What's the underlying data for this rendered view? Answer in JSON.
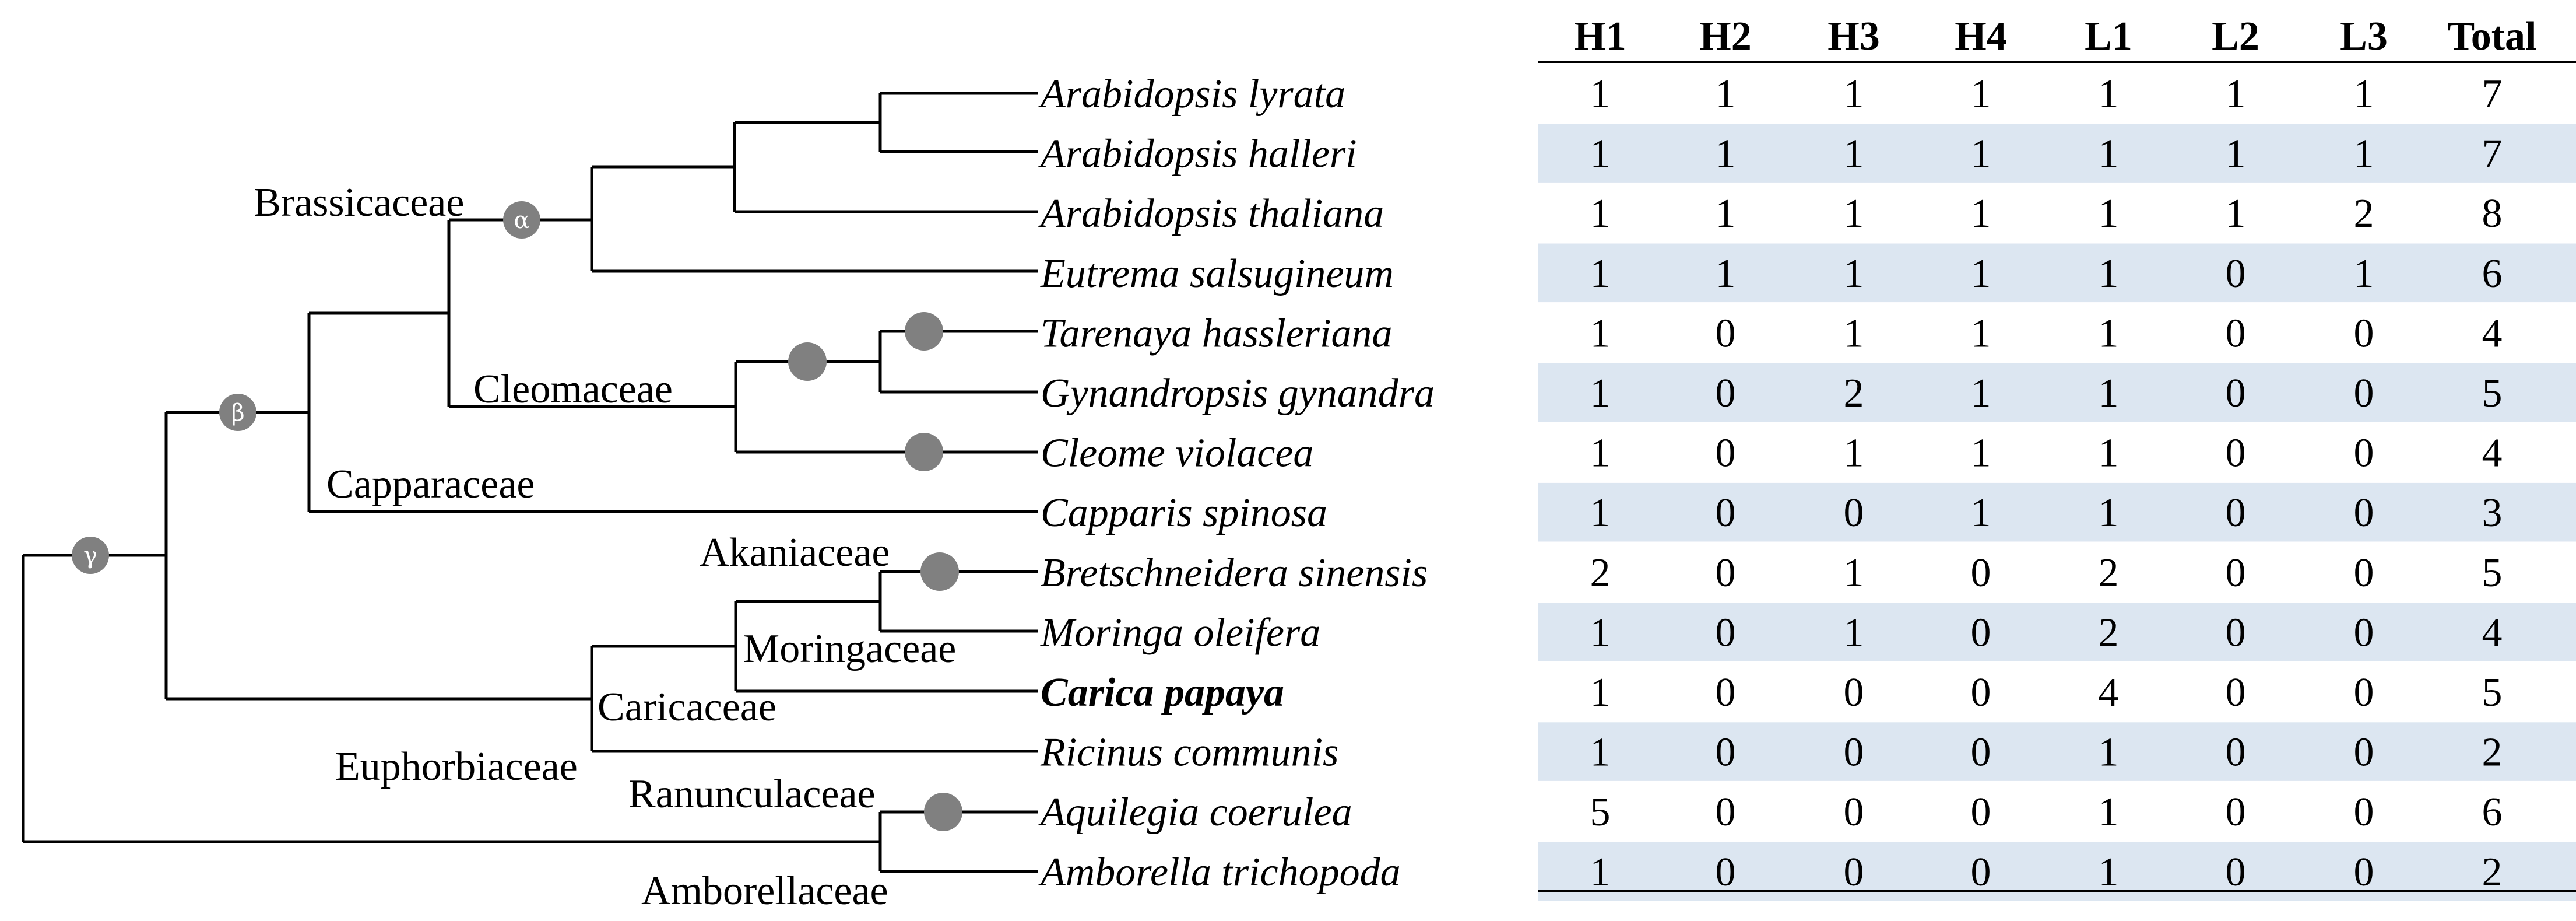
{
  "table": {
    "columns": [
      "H1",
      "H2",
      "H3",
      "H4",
      "L1",
      "L2",
      "L3",
      "Total"
    ],
    "rows": [
      {
        "species": "Arabidopsis lyrata",
        "values": [
          "1",
          "1",
          "1",
          "1",
          "1",
          "1",
          "1",
          "7"
        ],
        "bold": false
      },
      {
        "species": "Arabidopsis halleri",
        "values": [
          "1",
          "1",
          "1",
          "1",
          "1",
          "1",
          "1",
          "7"
        ],
        "bold": false
      },
      {
        "species": "Arabidopsis thaliana",
        "values": [
          "1",
          "1",
          "1",
          "1",
          "1",
          "1",
          "2",
          "8"
        ],
        "bold": false
      },
      {
        "species": "Eutrema salsugineum",
        "values": [
          "1",
          "1",
          "1",
          "1",
          "1",
          "0",
          "1",
          "6"
        ],
        "bold": false
      },
      {
        "species": "Tarenaya hassleriana",
        "values": [
          "1",
          "0",
          "1",
          "1",
          "1",
          "0",
          "0",
          "4"
        ],
        "bold": false
      },
      {
        "species": "Gynandropsis gynandra",
        "values": [
          "1",
          "0",
          "2",
          "1",
          "1",
          "0",
          "0",
          "5"
        ],
        "bold": false
      },
      {
        "species": "Cleome violacea",
        "values": [
          "1",
          "0",
          "1",
          "1",
          "1",
          "0",
          "0",
          "4"
        ],
        "bold": false
      },
      {
        "species": "Capparis spinosa",
        "values": [
          "1",
          "0",
          "0",
          "1",
          "1",
          "0",
          "0",
          "3"
        ],
        "bold": false
      },
      {
        "species": "Bretschneidera sinensis",
        "values": [
          "2",
          "0",
          "1",
          "0",
          "2",
          "0",
          "0",
          "5"
        ],
        "bold": false
      },
      {
        "species": "Moringa oleifera",
        "values": [
          "1",
          "0",
          "1",
          "0",
          "2",
          "0",
          "0",
          "4"
        ],
        "bold": false
      },
      {
        "species": "Carica papaya",
        "values": [
          "1",
          "0",
          "0",
          "0",
          "4",
          "0",
          "0",
          "5"
        ],
        "bold": true
      },
      {
        "species": "Ricinus communis",
        "values": [
          "1",
          "0",
          "0",
          "0",
          "1",
          "0",
          "0",
          "2"
        ],
        "bold": false
      },
      {
        "species": "Aquilegia coerulea",
        "values": [
          "5",
          "0",
          "0",
          "0",
          "1",
          "0",
          "0",
          "6"
        ],
        "bold": false
      },
      {
        "species": "Amborella trichopoda",
        "values": [
          "1",
          "0",
          "0",
          "0",
          "1",
          "0",
          "0",
          "2"
        ],
        "bold": false
      }
    ]
  },
  "families": [
    {
      "id": "brassicaceae",
      "label": "Brassicaceae"
    },
    {
      "id": "cleomaceae",
      "label": "Cleomaceae"
    },
    {
      "id": "capparaceae",
      "label": "Capparaceae"
    },
    {
      "id": "akaniaceae",
      "label": "Akaniaceae"
    },
    {
      "id": "moringaceae",
      "label": "Moringaceae"
    },
    {
      "id": "caricaceae",
      "label": "Caricaceae"
    },
    {
      "id": "euphorbiaceae",
      "label": "Euphorbiaceae"
    },
    {
      "id": "ranunculaceae",
      "label": "Ranunculaceae"
    },
    {
      "id": "amborellaceae",
      "label": "Amborellaceae"
    }
  ],
  "wgd_labels": {
    "alpha": "α",
    "beta": "β",
    "gamma": "γ"
  },
  "colors": {
    "stripe": "#dce6f1",
    "node": "#808080",
    "line": "#000000"
  }
}
